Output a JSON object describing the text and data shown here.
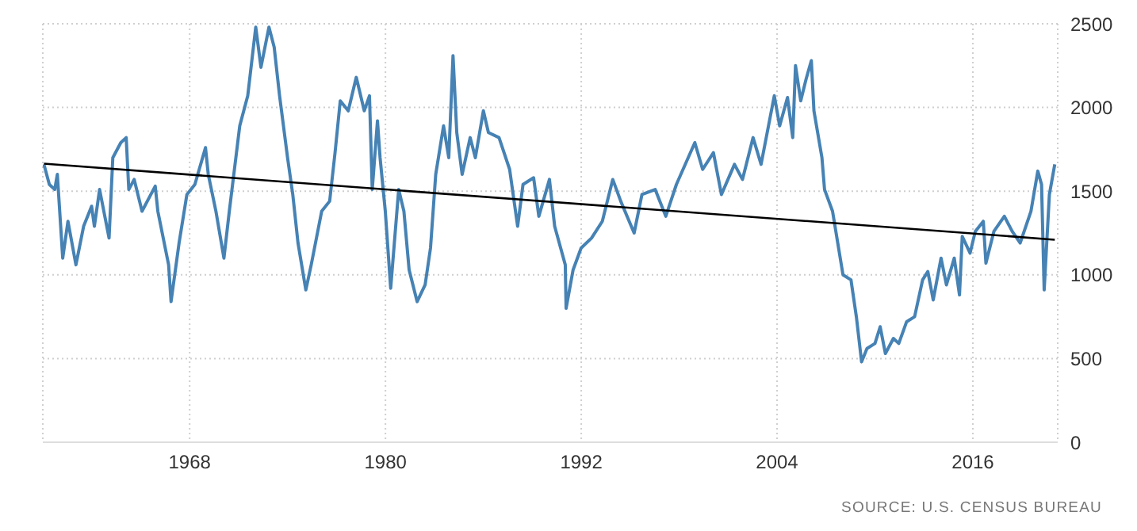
{
  "chart_data": {
    "type": "line",
    "xlim": [
      1959,
      2021.2
    ],
    "xticks": [
      1968,
      1980,
      1992,
      2004,
      2016
    ],
    "ylim": [
      0,
      2500
    ],
    "yticks": [
      0,
      500,
      1000,
      1500,
      2000,
      2500
    ],
    "grid": true,
    "annotations": [
      "SOURCE: U.S. CENSUS BUREAU"
    ],
    "series": [
      {
        "color": "#4682b4",
        "x": [
          1959.07,
          1959.4,
          1959.73,
          1959.89,
          1960.22,
          1960.54,
          1961.03,
          1961.5,
          1961.99,
          1962.16,
          1962.48,
          1963.06,
          1963.29,
          1963.78,
          1964.11,
          1964.27,
          1964.6,
          1965.08,
          1965.89,
          1966.05,
          1966.71,
          1966.86,
          1967.35,
          1967.83,
          1968.32,
          1968.97,
          1969.14,
          1969.61,
          1970.1,
          1970.43,
          1971.07,
          1971.56,
          1972.05,
          1972.37,
          1972.86,
          1973.18,
          1973.51,
          1974.0,
          1974.32,
          1974.64,
          1975.12,
          1975.45,
          1976.09,
          1976.58,
          1976.91,
          1977.23,
          1977.72,
          1978.21,
          1978.7,
          1979.02,
          1979.19,
          1979.51,
          1979.67,
          1979.99,
          1980.32,
          1980.81,
          1981.13,
          1981.45,
          1981.94,
          1982.43,
          1982.76,
          1983.08,
          1983.56,
          1983.88,
          1984.14,
          1984.37,
          1984.7,
          1985.19,
          1985.51,
          1986.0,
          1986.31,
          1986.96,
          1987.61,
          1988.1,
          1988.43,
          1989.08,
          1989.4,
          1990.05,
          1990.37,
          1991.02,
          1991.07,
          1991.5,
          1991.99,
          1992.63,
          1993.29,
          1993.93,
          1994.42,
          1995.24,
          1995.72,
          1996.53,
          1997.18,
          1997.83,
          1998.96,
          1999.44,
          2000.1,
          2000.59,
          2001.39,
          2001.88,
          2002.53,
          2003.02,
          2003.83,
          2004.16,
          2004.64,
          2004.96,
          2005.13,
          2005.45,
          2005.78,
          2006.1,
          2006.26,
          2006.75,
          2006.91,
          2007.4,
          2007.72,
          2008.04,
          2008.53,
          2008.86,
          2009.18,
          2009.51,
          2010.0,
          2010.32,
          2010.64,
          2011.13,
          2011.46,
          2011.94,
          2012.43,
          2012.92,
          2013.24,
          2013.57,
          2014.05,
          2014.38,
          2014.86,
          2015.18,
          2015.35,
          2015.83,
          2016.15,
          2016.64,
          2016.8,
          2017.29,
          2017.93,
          2018.41,
          2018.9,
          2019.56,
          2019.98,
          2020.21,
          2020.37,
          2020.69,
          2021.02
        ],
        "values": [
          1660,
          1540,
          1510,
          1600,
          1100,
          1320,
          1060,
          1290,
          1410,
          1290,
          1510,
          1220,
          1700,
          1790,
          1820,
          1510,
          1570,
          1380,
          1530,
          1380,
          1060,
          840,
          1190,
          1480,
          1540,
          1760,
          1600,
          1380,
          1100,
          1380,
          1890,
          2070,
          2480,
          2240,
          2480,
          2360,
          2070,
          1700,
          1480,
          1190,
          910,
          1060,
          1380,
          1440,
          1730,
          2040,
          1980,
          2180,
          1980,
          2070,
          1510,
          1920,
          1700,
          1380,
          920,
          1510,
          1380,
          1030,
          840,
          940,
          1160,
          1600,
          1890,
          1700,
          2310,
          1850,
          1600,
          1820,
          1700,
          1980,
          1850,
          1820,
          1630,
          1290,
          1540,
          1580,
          1350,
          1570,
          1290,
          1060,
          800,
          1030,
          1160,
          1220,
          1320,
          1570,
          1440,
          1250,
          1480,
          1510,
          1350,
          1540,
          1790,
          1630,
          1730,
          1480,
          1660,
          1570,
          1820,
          1660,
          2070,
          1890,
          2060,
          1820,
          2250,
          2040,
          2170,
          2280,
          1980,
          1700,
          1510,
          1380,
          1190,
          1000,
          970,
          750,
          480,
          560,
          590,
          690,
          530,
          620,
          590,
          720,
          750,
          970,
          1020,
          850,
          1100,
          940,
          1100,
          880,
          1230,
          1130,
          1260,
          1320,
          1070,
          1260,
          1350,
          1260,
          1190,
          1380,
          1620,
          1540,
          910,
          1480,
          1660
        ]
      },
      {
        "type": "line",
        "color": "#000000",
        "x": [
          1959.07,
          2021.02
        ],
        "values": [
          1664,
          1210
        ]
      }
    ]
  }
}
